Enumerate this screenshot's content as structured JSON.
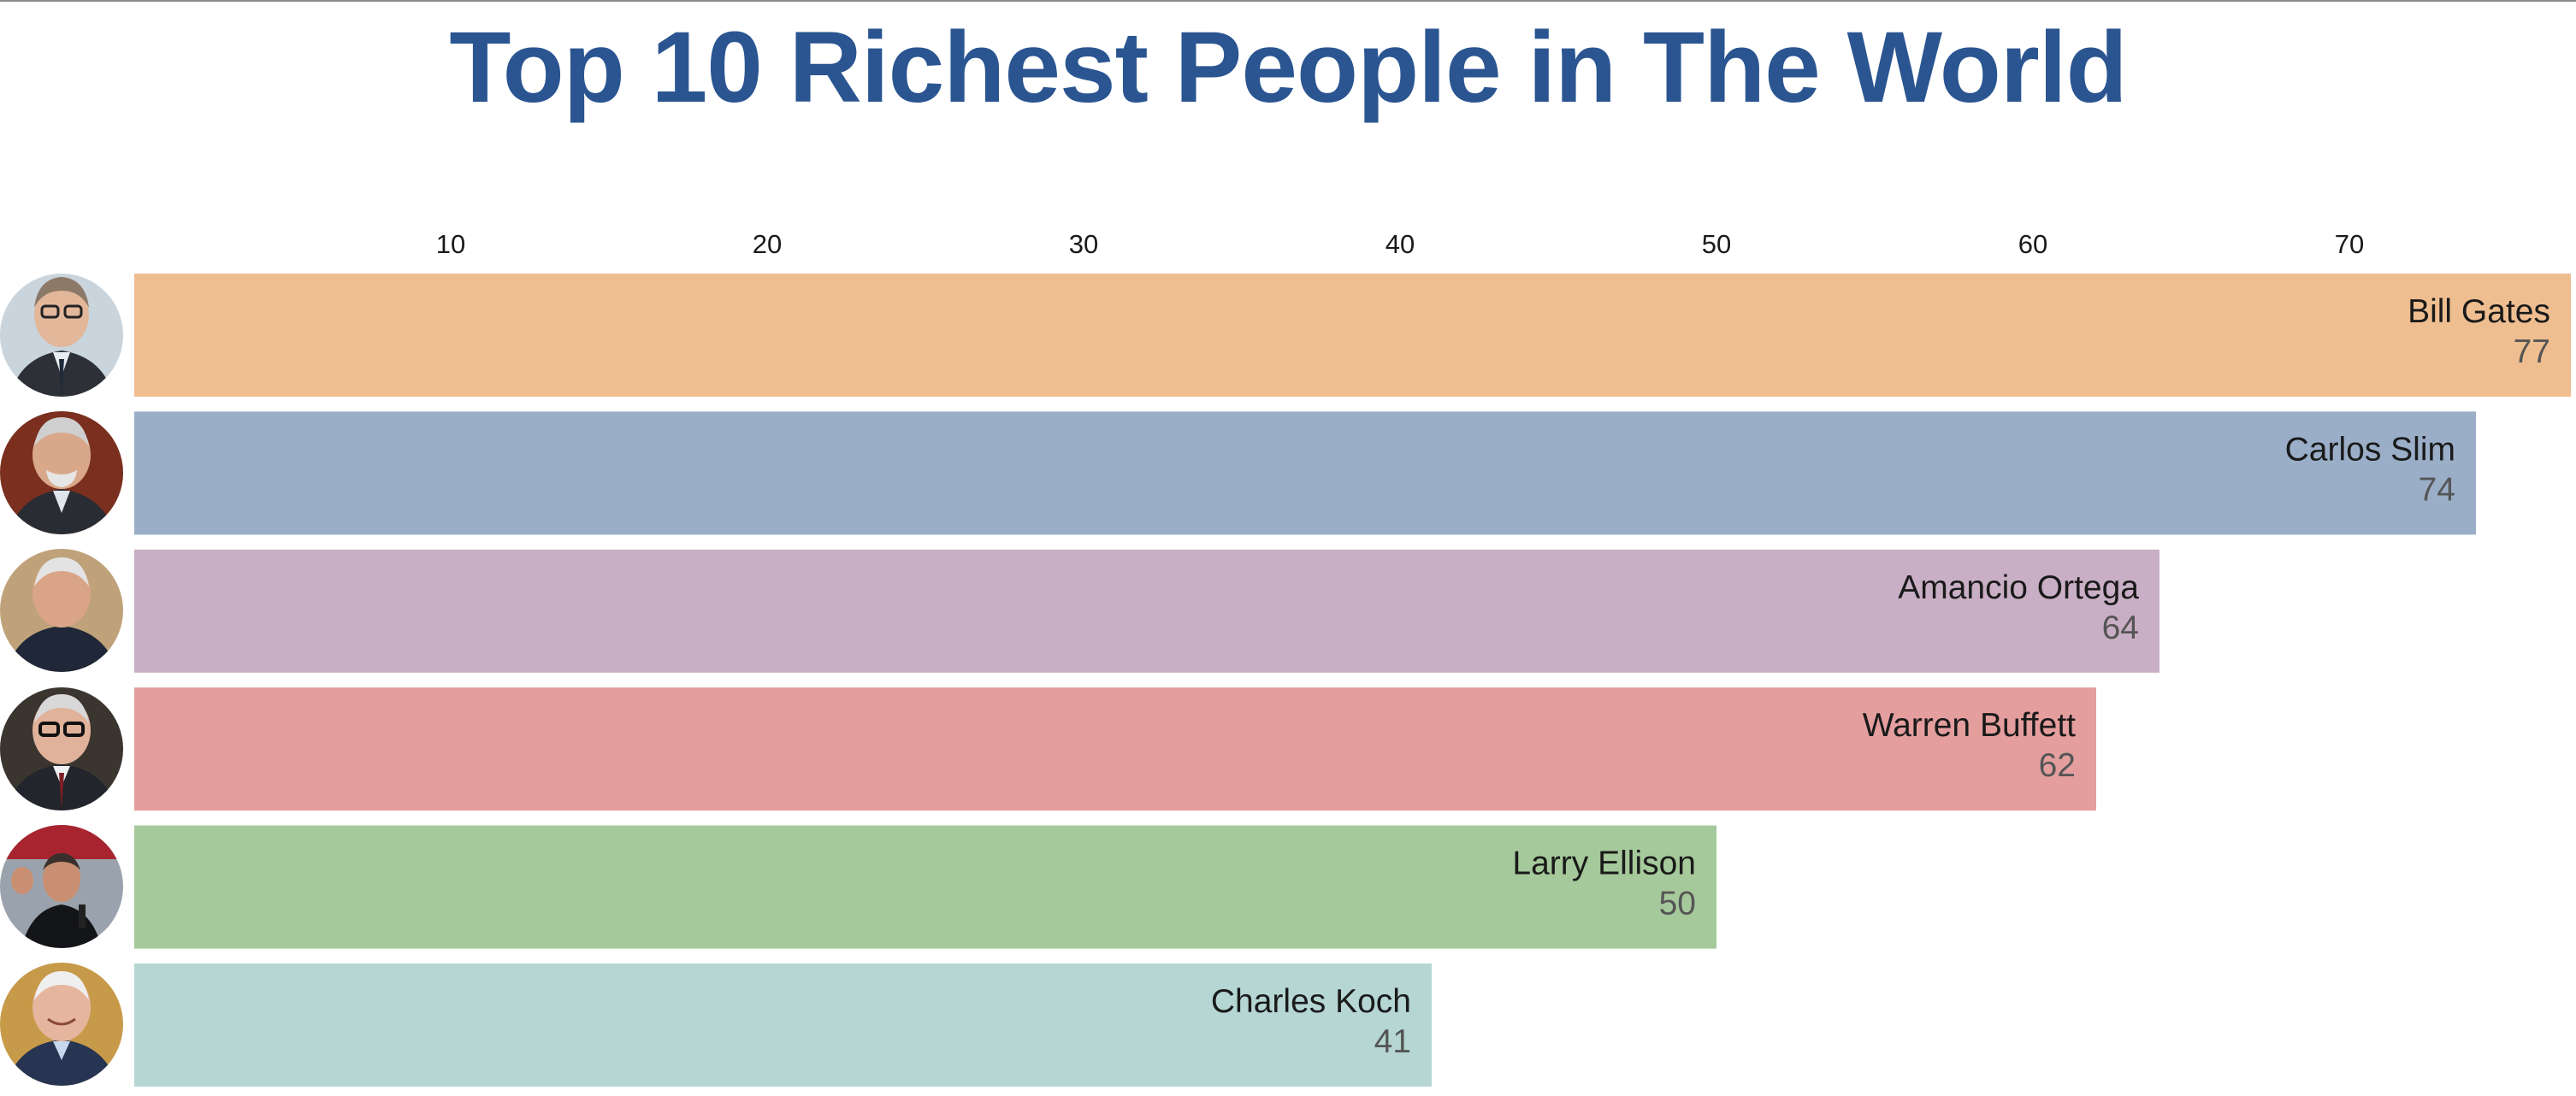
{
  "title": "Top 10 Richest People in The World",
  "chart_data": {
    "type": "bar",
    "orientation": "horizontal",
    "title": "Top 10 Richest People in The World",
    "xlabel": "",
    "ylabel": "",
    "x_axis_position": "top",
    "xlim": [
      0,
      77
    ],
    "ticks": [
      10,
      20,
      30,
      40,
      50,
      60,
      70
    ],
    "grid": false,
    "categories": [
      "Bill Gates",
      "Carlos Slim",
      "Amancio Ortega",
      "Warren Buffett",
      "Larry Ellison",
      "Charles Koch"
    ],
    "values": [
      77,
      74,
      64,
      62,
      50,
      41
    ],
    "colors": [
      "#efbe90",
      "#9aaec8",
      "#c9afc5",
      "#e49e9e",
      "#a6c99b",
      "#b5d6d3"
    ],
    "value_label_color": "#555555",
    "name_label_color": "#1a1a1a",
    "tick_label_color": "#1a1a1a"
  }
}
